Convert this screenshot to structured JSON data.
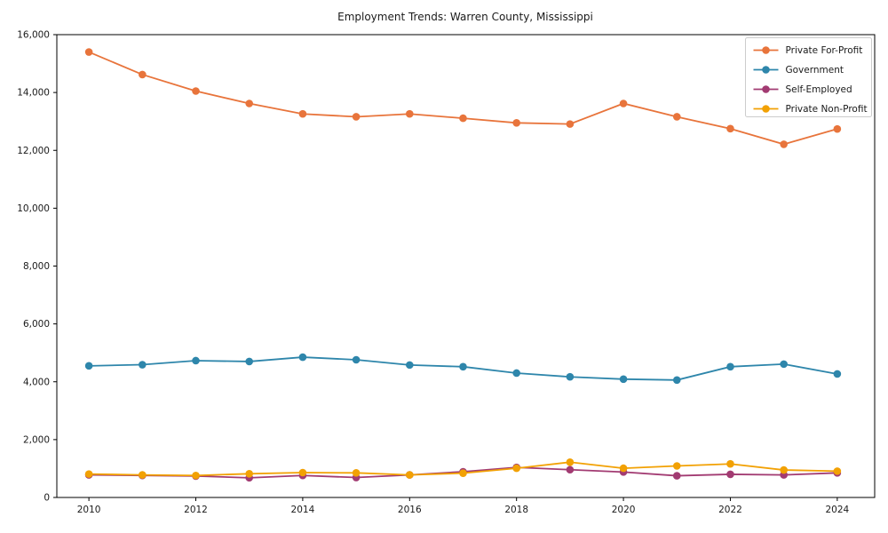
{
  "title": "Employment Trends: Warren County, Mississippi",
  "chart_data": {
    "type": "line",
    "x": [
      2010,
      2011,
      2012,
      2013,
      2014,
      2015,
      2016,
      2017,
      2018,
      2019,
      2020,
      2021,
      2022,
      2023,
      2024
    ],
    "series": [
      {
        "name": "Private For-Profit",
        "color": "#E8743B",
        "values": [
          15400,
          14620,
          14050,
          13620,
          13260,
          13160,
          13260,
          13110,
          12950,
          12910,
          13620,
          13160,
          12750,
          12210,
          12740
        ]
      },
      {
        "name": "Government",
        "color": "#2E86AB",
        "values": [
          4550,
          4590,
          4730,
          4700,
          4850,
          4760,
          4580,
          4520,
          4300,
          4170,
          4090,
          4060,
          4520,
          4610,
          4270
        ]
      },
      {
        "name": "Self-Employed",
        "color": "#A23B72",
        "values": [
          780,
          760,
          740,
          680,
          760,
          690,
          780,
          890,
          1040,
          960,
          880,
          750,
          800,
          780,
          850
        ]
      },
      {
        "name": "Private Non-Profit",
        "color": "#F2A104",
        "values": [
          810,
          780,
          760,
          820,
          860,
          850,
          780,
          840,
          1010,
          1220,
          1010,
          1090,
          1160,
          950,
          910
        ]
      }
    ],
    "xlabel": "",
    "ylabel": "",
    "ylim": [
      0,
      16000
    ],
    "ytick_step": 2000,
    "yticklabels": [
      "0",
      "2,000",
      "4,000",
      "6,000",
      "8,000",
      "10,000",
      "12,000",
      "14,000",
      "16,000"
    ],
    "xticks": [
      2010,
      2012,
      2014,
      2016,
      2018,
      2020,
      2022,
      2024
    ],
    "grid": false,
    "legend_position": "upper right",
    "axis_color": "#000000",
    "background_color": "#ffffff"
  }
}
